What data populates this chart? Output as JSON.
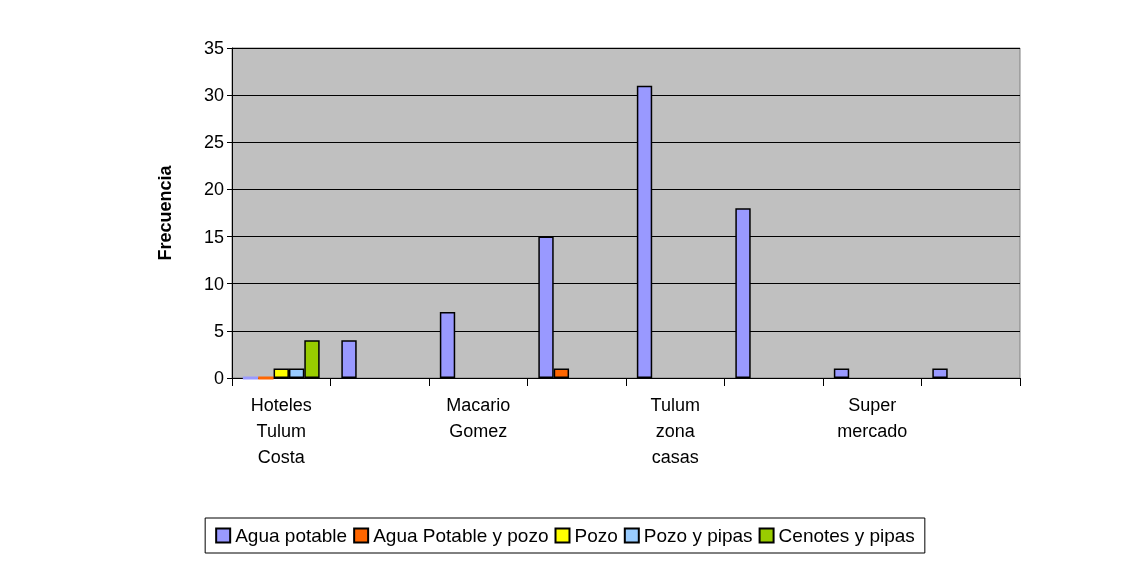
{
  "chart_data": {
    "type": "bar",
    "ylabel": "Frecuencia",
    "categories": [
      "Hoteles\nTulum\nCosta",
      null,
      "Macario\nGomez",
      null,
      "Tulum\nzona\ncasas",
      null,
      "Super\nmercado",
      null
    ],
    "series": [
      {
        "name": "Agua potable",
        "color": "#9999ff",
        "values": [
          0,
          4,
          7,
          15,
          31,
          18,
          1,
          1
        ]
      },
      {
        "name": "Agua Potable y pozo",
        "color": "#ff6600",
        "values": [
          0,
          null,
          null,
          1,
          null,
          null,
          null,
          null
        ]
      },
      {
        "name": "Pozo",
        "color": "#ffff00",
        "values": [
          1,
          null,
          null,
          null,
          null,
          null,
          null,
          null
        ]
      },
      {
        "name": "Pozo y pipas",
        "color": "#99ccff",
        "values": [
          1,
          null,
          null,
          null,
          null,
          null,
          null,
          null
        ]
      },
      {
        "name": "Cenotes y pipas",
        "color": "#99cc00",
        "values": [
          4,
          null,
          null,
          null,
          null,
          null,
          null,
          null
        ]
      }
    ],
    "ylim": [
      0,
      35
    ],
    "yticks": [
      0,
      5,
      10,
      15,
      20,
      25,
      30,
      35
    ],
    "grid": "y",
    "legend": "bottom"
  }
}
